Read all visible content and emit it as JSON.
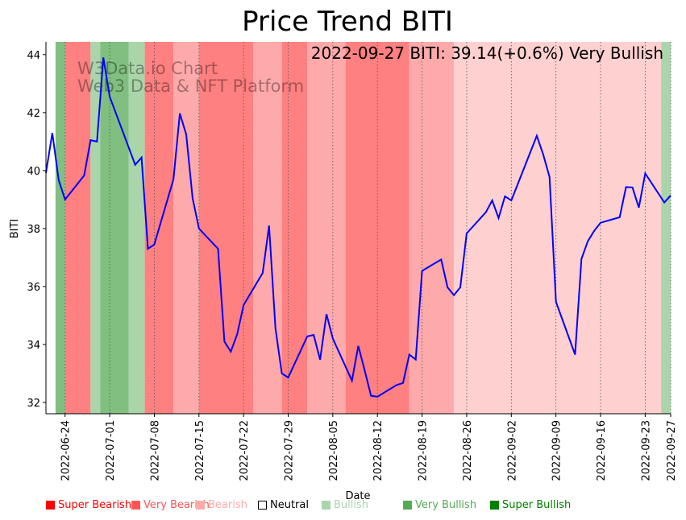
{
  "chart_data": {
    "type": "line",
    "title": "Price Trend BITI",
    "xlabel": "Date",
    "ylabel": "BITI",
    "ylim": [
      31.61,
      44.44
    ],
    "xlim": [
      "2022-06-21",
      "2022-09-27"
    ],
    "yticks": [
      32,
      34,
      36,
      38,
      40,
      42,
      44
    ],
    "xticks": [
      "2022-06-24",
      "2022-07-01",
      "2022-07-08",
      "2022-07-15",
      "2022-07-22",
      "2022-07-29",
      "2022-08-05",
      "2022-08-12",
      "2022-08-19",
      "2022-08-26",
      "2022-09-02",
      "2022-09-09",
      "2022-09-16",
      "2022-09-23",
      "2022-09-27"
    ],
    "grid": "vertical dotted at x ticks",
    "line_color": "#0000ff",
    "annotation": "2022-09-27 BITI: 39.14(+0.6%) Very Bullish",
    "watermark": [
      "W3Data.io Chart",
      "Web3 Data & NFT Platform"
    ],
    "series": [
      {
        "name": "BITI",
        "x": [
          "2022-06-21",
          "2022-06-22",
          "2022-06-23",
          "2022-06-24",
          "2022-06-27",
          "2022-06-28",
          "2022-06-29",
          "2022-06-30",
          "2022-07-01",
          "2022-07-05",
          "2022-07-06",
          "2022-07-07",
          "2022-07-08",
          "2022-07-11",
          "2022-07-12",
          "2022-07-13",
          "2022-07-14",
          "2022-07-15",
          "2022-07-18",
          "2022-07-19",
          "2022-07-20",
          "2022-07-21",
          "2022-07-22",
          "2022-07-25",
          "2022-07-26",
          "2022-07-27",
          "2022-07-28",
          "2022-07-29",
          "2022-08-01",
          "2022-08-02",
          "2022-08-03",
          "2022-08-04",
          "2022-08-05",
          "2022-08-08",
          "2022-08-09",
          "2022-08-10",
          "2022-08-11",
          "2022-08-12",
          "2022-08-15",
          "2022-08-16",
          "2022-08-17",
          "2022-08-18",
          "2022-08-19",
          "2022-08-22",
          "2022-08-23",
          "2022-08-24",
          "2022-08-25",
          "2022-08-26",
          "2022-08-29",
          "2022-08-30",
          "2022-08-31",
          "2022-09-01",
          "2022-09-02",
          "2022-09-06",
          "2022-09-07",
          "2022-09-08",
          "2022-09-09",
          "2022-09-12",
          "2022-09-13",
          "2022-09-14",
          "2022-09-15",
          "2022-09-16",
          "2022-09-19",
          "2022-09-20",
          "2022-09-21",
          "2022-09-22",
          "2022-09-23",
          "2022-09-26",
          "2022-09-27"
        ],
        "y": [
          39.92,
          41.3,
          39.67,
          39.0,
          39.83,
          41.05,
          41.0,
          43.9,
          42.55,
          40.2,
          40.45,
          37.3,
          37.45,
          39.7,
          41.97,
          41.25,
          39.05,
          38.0,
          37.3,
          34.1,
          33.75,
          34.35,
          35.36,
          36.47,
          38.1,
          34.56,
          33.0,
          32.86,
          34.28,
          34.33,
          33.47,
          35.05,
          34.2,
          32.75,
          33.95,
          33.1,
          32.23,
          32.2,
          32.6,
          32.67,
          33.65,
          33.48,
          36.54,
          36.93,
          35.97,
          35.7,
          35.97,
          37.83,
          38.56,
          38.97,
          38.36,
          39.11,
          38.97,
          41.2,
          40.56,
          39.78,
          35.47,
          33.65,
          36.95,
          37.56,
          37.92,
          38.2,
          38.39,
          39.43,
          39.42,
          38.72,
          39.9,
          38.9,
          39.14
        ]
      }
    ],
    "bands": [
      {
        "start": "2022-06-22T12:00",
        "end": "2022-06-24",
        "color": "#80bf80"
      },
      {
        "start": "2022-06-24",
        "end": "2022-06-28",
        "color": "#ff8080"
      },
      {
        "start": "2022-06-28",
        "end": "2022-06-29T12:00",
        "color": "#aad5aa"
      },
      {
        "start": "2022-06-29T12:00",
        "end": "2022-07-04",
        "color": "#80bf80"
      },
      {
        "start": "2022-07-04",
        "end": "2022-07-06T12:00",
        "color": "#aad5aa"
      },
      {
        "start": "2022-07-06T12:00",
        "end": "2022-07-11",
        "color": "#ff8080"
      },
      {
        "start": "2022-07-11",
        "end": "2022-07-15",
        "color": "#ffaaaa"
      },
      {
        "start": "2022-07-15",
        "end": "2022-07-23T12:00",
        "color": "#ff8080"
      },
      {
        "start": "2022-07-23T12:00",
        "end": "2022-07-28",
        "color": "#ffaaaa"
      },
      {
        "start": "2022-07-28",
        "end": "2022-08-01",
        "color": "#ff8080"
      },
      {
        "start": "2022-08-01",
        "end": "2022-08-07",
        "color": "#ffaaaa"
      },
      {
        "start": "2022-08-07",
        "end": "2022-08-17",
        "color": "#ff8080"
      },
      {
        "start": "2022-08-17",
        "end": "2022-08-24",
        "color": "#ffaaaa"
      },
      {
        "start": "2022-08-24",
        "end": "2022-09-25T12:00",
        "color": "#ffd0d0"
      },
      {
        "start": "2022-09-25T12:00",
        "end": "2022-09-27",
        "color": "#aad5aa"
      }
    ],
    "legend": [
      {
        "label": "Super Bearish",
        "color": "#ff0000",
        "text_color": "#ff0000"
      },
      {
        "label": "Very Bearish",
        "color": "#ff5555",
        "text_color": "#ff5555"
      },
      {
        "label": "Bearish",
        "color": "#ffaaaa",
        "text_color": "#ffaaaa"
      },
      {
        "label": "Neutral",
        "color": "#ffffff",
        "text_color": "#000000"
      },
      {
        "label": "Bullish",
        "color": "#aad5aa",
        "text_color": "#aad5aa"
      },
      {
        "label": "Very Bullish",
        "color": "#55aa55",
        "text_color": "#55aa55"
      },
      {
        "label": "Super Bullish",
        "color": "#008000",
        "text_color": "#008000"
      }
    ],
    "legend_position": "bottom"
  }
}
